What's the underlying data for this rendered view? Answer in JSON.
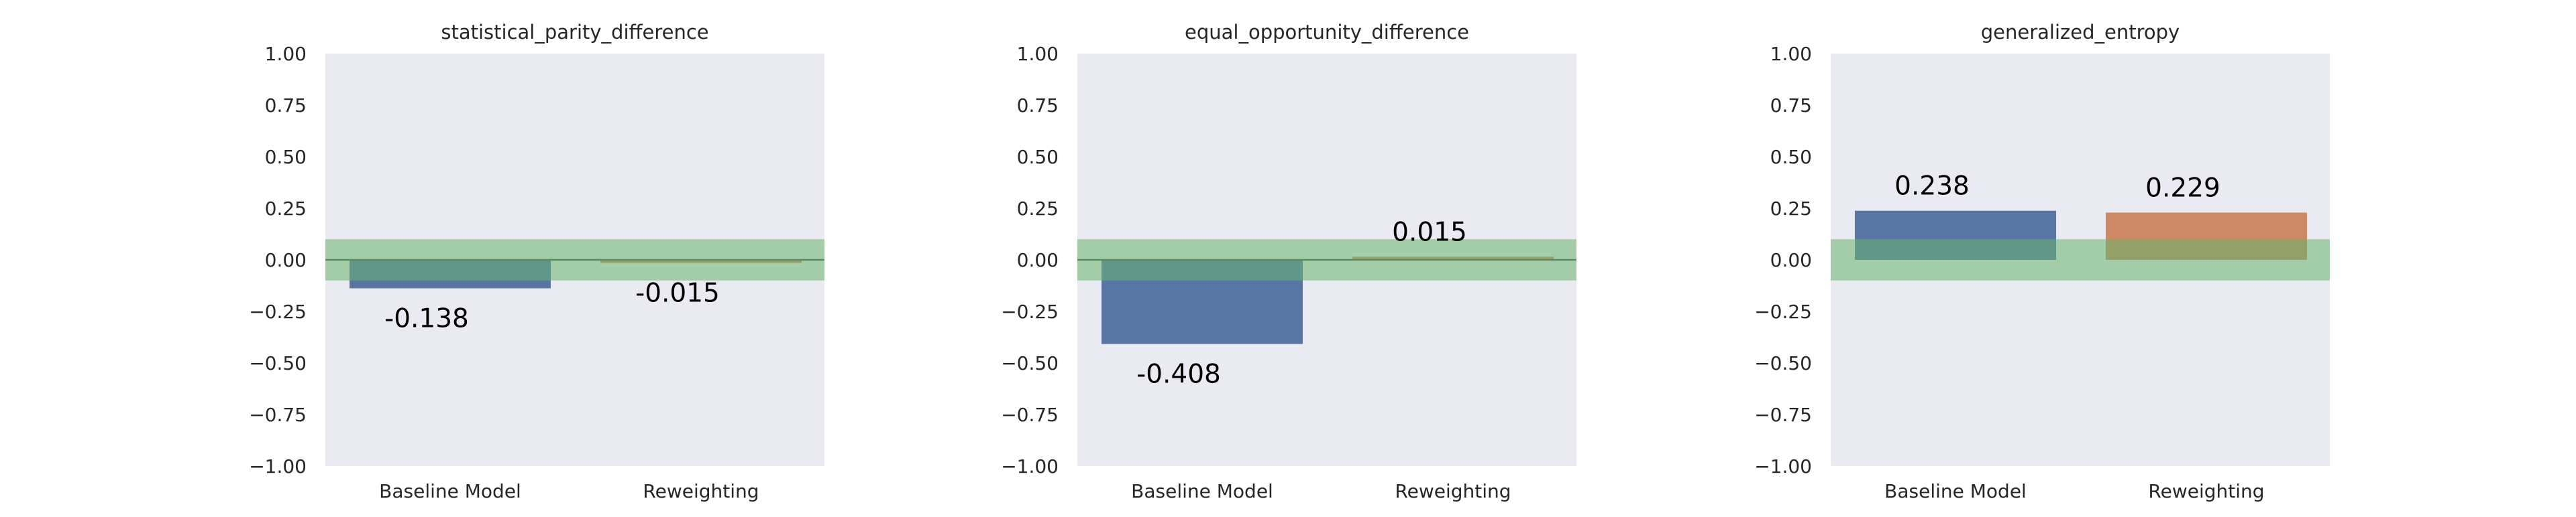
{
  "chart_data": [
    {
      "type": "bar",
      "title": "statistical_parity_difference",
      "categories": [
        "Baseline Model",
        "Reweighting"
      ],
      "values": [
        -0.138,
        -0.015
      ],
      "value_labels": [
        "-0.138",
        "-0.015"
      ],
      "ylim": [
        -1.0,
        1.0
      ],
      "yticks": [
        "−1.00",
        "−0.75",
        "−0.50",
        "−0.25",
        "0.00",
        "0.25",
        "0.50",
        "0.75",
        "1.00"
      ],
      "fair_band": [
        -0.1,
        0.1
      ],
      "reference_line": 0,
      "grid": false
    },
    {
      "type": "bar",
      "title": "equal_opportunity_difference",
      "categories": [
        "Baseline Model",
        "Reweighting"
      ],
      "values": [
        -0.408,
        0.015
      ],
      "value_labels": [
        "-0.408",
        "0.015"
      ],
      "ylim": [
        -1.0,
        1.0
      ],
      "yticks": [
        "−1.00",
        "−0.75",
        "−0.50",
        "−0.25",
        "0.00",
        "0.25",
        "0.50",
        "0.75",
        "1.00"
      ],
      "fair_band": [
        -0.1,
        0.1
      ],
      "reference_line": 0,
      "grid": false
    },
    {
      "type": "bar",
      "title": "generalized_entropy",
      "categories": [
        "Baseline Model",
        "Reweighting"
      ],
      "values": [
        0.238,
        0.229
      ],
      "value_labels": [
        "0.238",
        "0.229"
      ],
      "ylim": [
        -1.0,
        1.0
      ],
      "yticks": [
        "−1.00",
        "−0.75",
        "−0.50",
        "−0.25",
        "0.00",
        "0.25",
        "0.50",
        "0.75",
        "1.00"
      ],
      "fair_band": [
        -0.1,
        0.1
      ],
      "reference_line": null,
      "grid": false
    }
  ],
  "colors": {
    "baseline_bar": "#5975a4",
    "reweighting_bar": "#cc8963",
    "axes_background": "#eaeaf2",
    "fair_band": "#68b26e",
    "reference_line": "#5a8a5e",
    "text": "#262626"
  }
}
